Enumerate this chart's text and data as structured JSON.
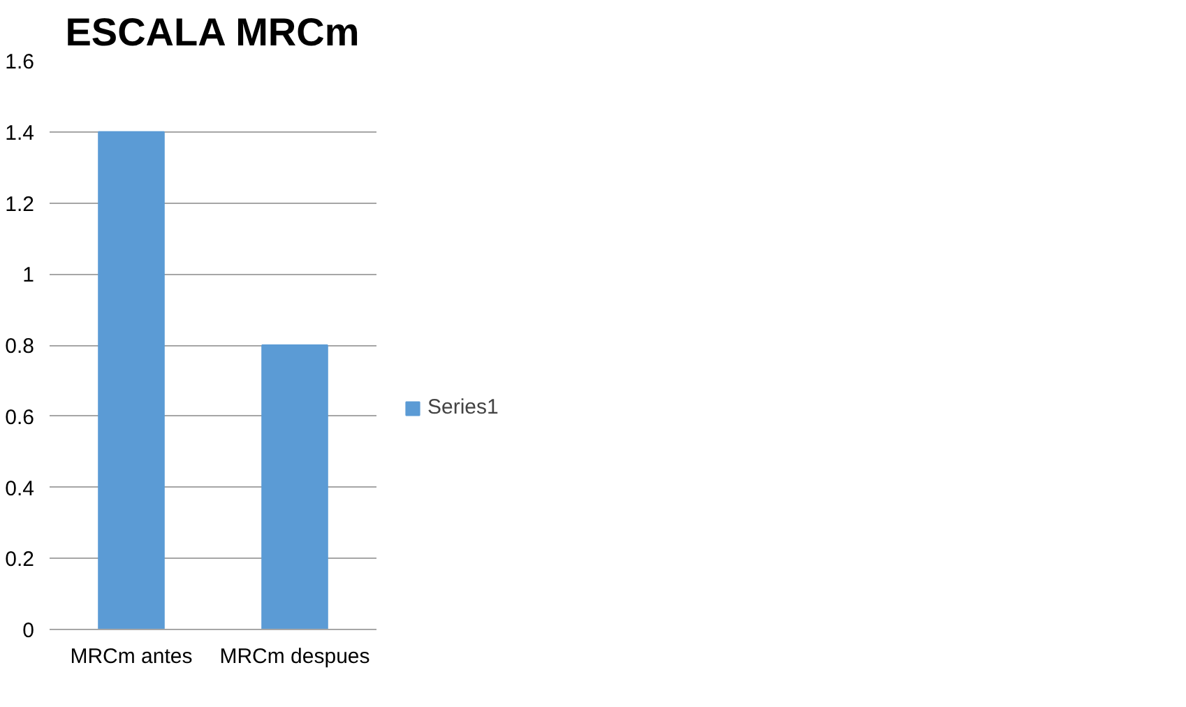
{
  "chart_data": {
    "type": "bar",
    "title": "ESCALA MRCm",
    "categories": [
      "MRCm antes",
      "MRCm despues"
    ],
    "series": [
      {
        "name": "Series1",
        "color": "#5b9bd5",
        "values": [
          1.4,
          0.8
        ]
      }
    ],
    "ylim": [
      0,
      1.6
    ],
    "yticks": [
      0,
      0.2,
      0.4,
      0.6,
      0.8,
      1,
      1.2,
      1.4,
      1.6
    ],
    "grid": "y",
    "legend": "right"
  }
}
